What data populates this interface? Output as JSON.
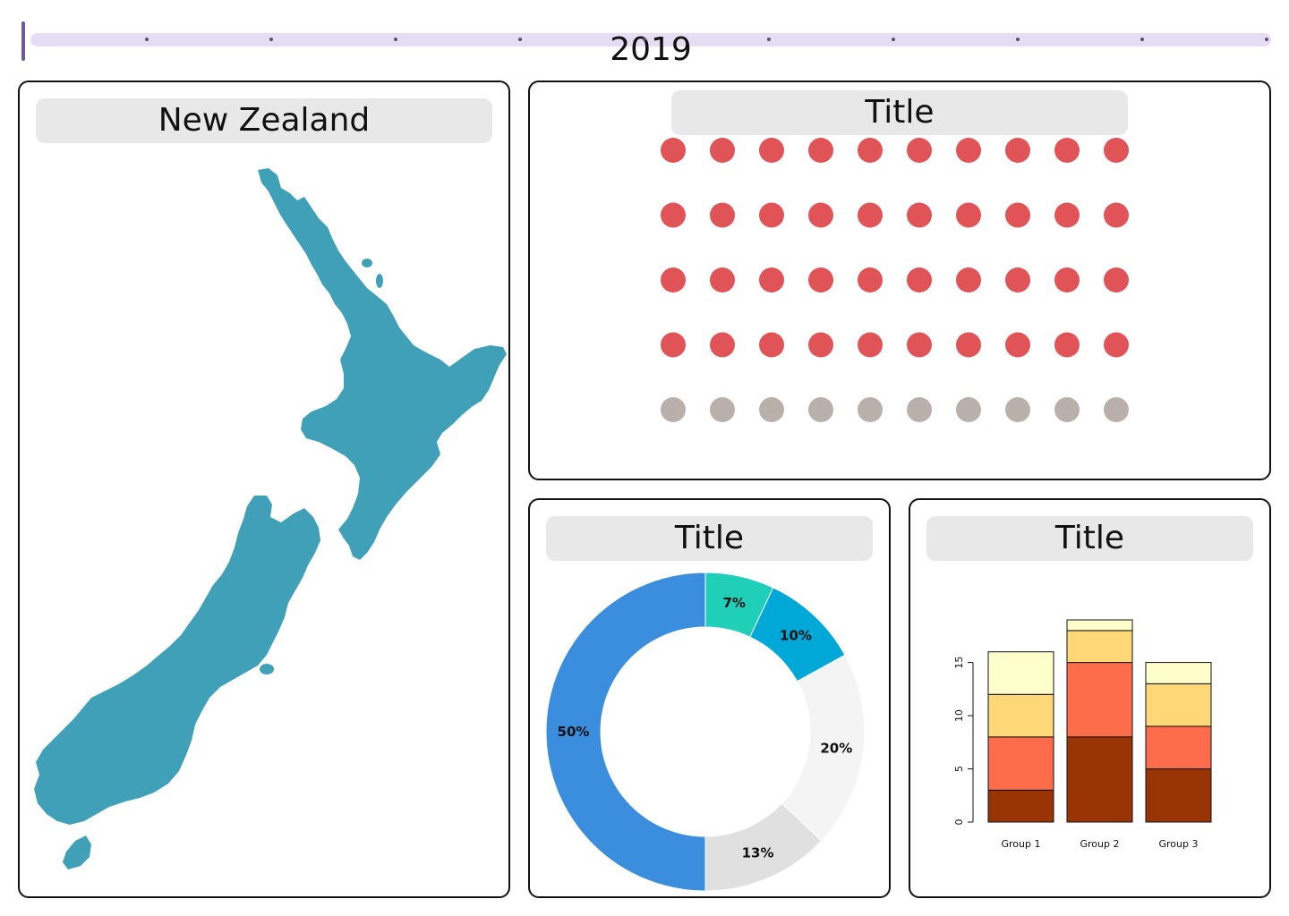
{
  "timeline": {
    "year": "2019",
    "track_color": "#e6ddf5",
    "marker_color": "#6b5aa0",
    "stops": 10
  },
  "map_panel": {
    "title": "New Zealand",
    "land_color": "#40a0b8"
  },
  "waffle_panel": {
    "title": "Title",
    "filled_color": "#e05458",
    "empty_color": "#b9b0ab",
    "chart_data": {
      "type": "waffle",
      "rows": 5,
      "cols": 10,
      "filled": 40,
      "total": 50
    }
  },
  "donut_panel": {
    "title": "Title",
    "chart_data": {
      "type": "pie",
      "donut": true,
      "slices": [
        {
          "label": "7%",
          "value": 7,
          "color": "#1fcfb8"
        },
        {
          "label": "10%",
          "value": 10,
          "color": "#00a8d8"
        },
        {
          "label": "20%",
          "value": 20,
          "color": "#f4f4f4"
        },
        {
          "label": "13%",
          "value": 13,
          "color": "#e0e0e0"
        },
        {
          "label": "50%",
          "value": 50,
          "color": "#3b8ddd"
        }
      ]
    }
  },
  "bar_panel": {
    "title": "Title",
    "chart_data": {
      "type": "bar",
      "stacked": true,
      "categories": [
        "Group 1",
        "Group 2",
        "Group 3"
      ],
      "series": [
        {
          "values": [
            3,
            8,
            5
          ],
          "color": "#993404"
        },
        {
          "values": [
            5,
            7,
            4
          ],
          "color": "#fd6d4b"
        },
        {
          "values": [
            4,
            3,
            4
          ],
          "color": "#fed776"
        },
        {
          "values": [
            4,
            1,
            2
          ],
          "color": "#ffffcc"
        }
      ],
      "yticks": [
        "0",
        "5",
        "10",
        "15"
      ],
      "ylim": [
        0,
        19
      ]
    }
  }
}
